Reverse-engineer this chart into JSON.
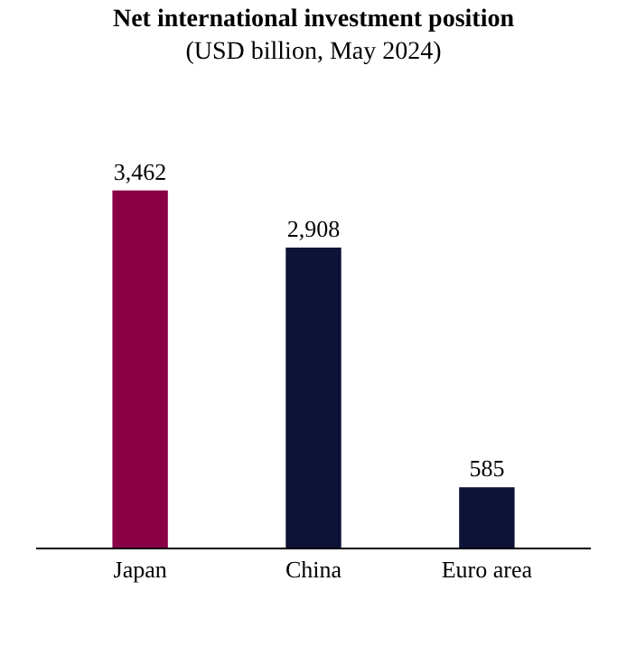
{
  "chart_data": {
    "type": "bar",
    "title": "Net international investment position",
    "subtitle": "(USD billion, May 2024)",
    "categories": [
      "Japan",
      "China",
      "Euro area"
    ],
    "values": [
      3462,
      2908,
      585
    ],
    "colors": [
      "#8a0047",
      "#0d1337",
      "#0d1337"
    ],
    "value_labels": [
      "3,462",
      "2,908",
      "585"
    ]
  }
}
